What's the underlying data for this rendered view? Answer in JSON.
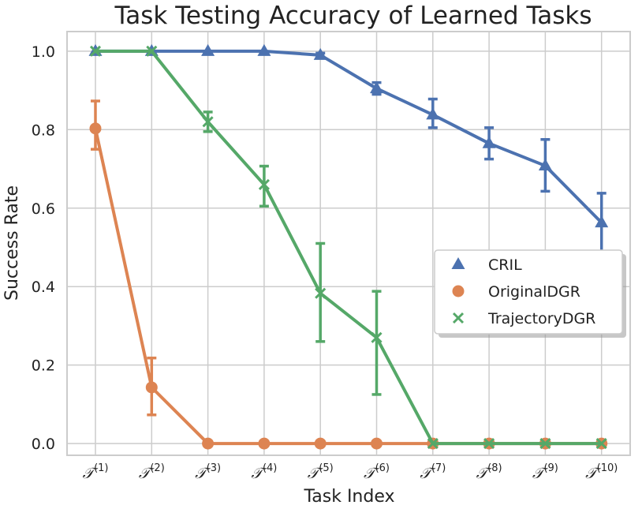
{
  "chart_data": {
    "type": "line",
    "title": "Task Testing Accuracy of Learned Tasks",
    "xlabel": "Task Index",
    "ylabel": "Success Rate",
    "ylim": [
      -0.03,
      1.05
    ],
    "yticks": [
      "0.0",
      "0.2",
      "0.4",
      "0.6",
      "0.8",
      "1.0"
    ],
    "categories": [
      {
        "base": "𝒯",
        "sup": "(1)"
      },
      {
        "base": "𝒯",
        "sup": "(2)"
      },
      {
        "base": "𝒯",
        "sup": "(3)"
      },
      {
        "base": "𝒯",
        "sup": "(4)"
      },
      {
        "base": "𝒯",
        "sup": "(5)"
      },
      {
        "base": "𝒯",
        "sup": "(6)"
      },
      {
        "base": "𝒯",
        "sup": "(7)"
      },
      {
        "base": "𝒯",
        "sup": "(8)"
      },
      {
        "base": "𝒯",
        "sup": "(9)"
      },
      {
        "base": "𝒯",
        "sup": "(10)"
      }
    ],
    "grid": true,
    "legend_position": "center-right",
    "series": [
      {
        "name": "CRIL",
        "marker": "triangle",
        "color": "#4c72b0",
        "values": [
          1.0,
          1.0,
          1.0,
          1.0,
          0.99,
          0.905,
          0.838,
          0.765,
          0.708,
          0.563
        ],
        "err_low": [
          1.0,
          1.0,
          1.0,
          1.0,
          0.985,
          0.89,
          0.805,
          0.725,
          0.643,
          0.485
        ],
        "err_high": [
          1.0,
          1.0,
          1.0,
          1.0,
          0.995,
          0.92,
          0.878,
          0.805,
          0.775,
          0.638
        ]
      },
      {
        "name": "OriginalDGR",
        "marker": "circle",
        "color": "#dd8452",
        "values": [
          0.803,
          0.143,
          0.0,
          0.0,
          0.0,
          0.0,
          0.0,
          0.0,
          0.0,
          0.0
        ],
        "err_low": [
          0.75,
          0.073,
          0.0,
          0.0,
          0.0,
          0.0,
          0.0,
          0.0,
          0.0,
          0.0
        ],
        "err_high": [
          0.873,
          0.218,
          0.0,
          0.0,
          0.0,
          0.0,
          0.0,
          0.0,
          0.0,
          0.0
        ]
      },
      {
        "name": "TrajectoryDGR",
        "marker": "x",
        "color": "#55a868",
        "values": [
          1.0,
          1.0,
          0.82,
          0.66,
          0.383,
          0.27,
          0.0,
          0.0,
          0.0,
          0.0
        ],
        "err_low": [
          1.0,
          1.0,
          0.795,
          0.605,
          0.26,
          0.125,
          0.0,
          0.0,
          0.0,
          0.0
        ],
        "err_high": [
          1.0,
          1.0,
          0.845,
          0.707,
          0.51,
          0.388,
          0.0,
          0.0,
          0.0,
          0.0
        ]
      }
    ]
  }
}
